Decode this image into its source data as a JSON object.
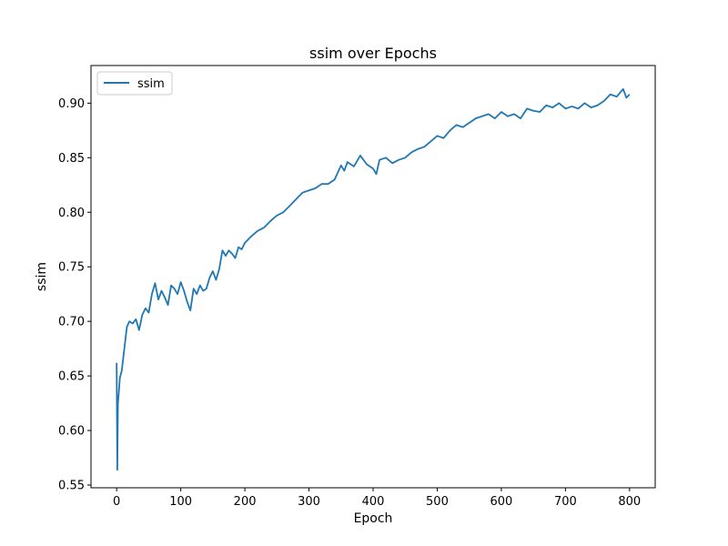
{
  "chart_data": {
    "type": "line",
    "title": "ssim over Epochs",
    "xlabel": "Epoch",
    "ylabel": "ssim",
    "xlim": [
      -40,
      840
    ],
    "ylim": [
      0.5475,
      0.9345
    ],
    "xticks": [
      0,
      100,
      200,
      300,
      400,
      500,
      600,
      700,
      800
    ],
    "yticks": [
      0.55,
      0.6,
      0.65,
      0.7,
      0.75,
      0.8,
      0.85,
      0.9
    ],
    "xtick_labels": [
      "0",
      "100",
      "200",
      "300",
      "400",
      "500",
      "600",
      "700",
      "800"
    ],
    "ytick_labels": [
      "0.55",
      "0.60",
      "0.65",
      "0.70",
      "0.75",
      "0.80",
      "0.85",
      "0.90"
    ],
    "grid": false,
    "legend_position": "top-left",
    "series": [
      {
        "name": "ssim",
        "color": "#1f77b4",
        "x": [
          0,
          1,
          2,
          3,
          5,
          8,
          12,
          16,
          20,
          25,
          30,
          35,
          40,
          45,
          50,
          55,
          60,
          65,
          70,
          75,
          80,
          85,
          90,
          95,
          100,
          105,
          110,
          115,
          120,
          125,
          130,
          135,
          140,
          145,
          150,
          155,
          160,
          165,
          170,
          175,
          180,
          185,
          190,
          195,
          200,
          210,
          220,
          230,
          240,
          250,
          260,
          270,
          280,
          290,
          300,
          310,
          320,
          330,
          340,
          350,
          355,
          360,
          370,
          380,
          390,
          400,
          405,
          410,
          420,
          430,
          440,
          450,
          460,
          470,
          480,
          490,
          500,
          510,
          520,
          530,
          540,
          550,
          560,
          570,
          580,
          590,
          600,
          610,
          620,
          630,
          640,
          650,
          660,
          670,
          680,
          690,
          700,
          710,
          720,
          730,
          740,
          750,
          760,
          770,
          780,
          790,
          795,
          800
        ],
        "y": [
          0.662,
          0.564,
          0.625,
          0.632,
          0.648,
          0.655,
          0.675,
          0.695,
          0.7,
          0.698,
          0.702,
          0.692,
          0.706,
          0.712,
          0.708,
          0.725,
          0.735,
          0.72,
          0.728,
          0.722,
          0.715,
          0.733,
          0.73,
          0.725,
          0.736,
          0.728,
          0.718,
          0.71,
          0.73,
          0.725,
          0.733,
          0.728,
          0.73,
          0.74,
          0.746,
          0.738,
          0.748,
          0.765,
          0.76,
          0.765,
          0.762,
          0.758,
          0.768,
          0.766,
          0.772,
          0.778,
          0.783,
          0.786,
          0.792,
          0.797,
          0.8,
          0.806,
          0.812,
          0.818,
          0.82,
          0.822,
          0.826,
          0.826,
          0.83,
          0.843,
          0.838,
          0.846,
          0.842,
          0.852,
          0.844,
          0.84,
          0.835,
          0.848,
          0.85,
          0.845,
          0.848,
          0.85,
          0.855,
          0.858,
          0.86,
          0.865,
          0.87,
          0.868,
          0.875,
          0.88,
          0.878,
          0.882,
          0.886,
          0.888,
          0.89,
          0.886,
          0.892,
          0.888,
          0.89,
          0.886,
          0.895,
          0.893,
          0.892,
          0.898,
          0.896,
          0.9,
          0.895,
          0.897,
          0.895,
          0.9,
          0.896,
          0.898,
          0.902,
          0.908,
          0.906,
          0.913,
          0.905,
          0.908
        ]
      }
    ]
  }
}
